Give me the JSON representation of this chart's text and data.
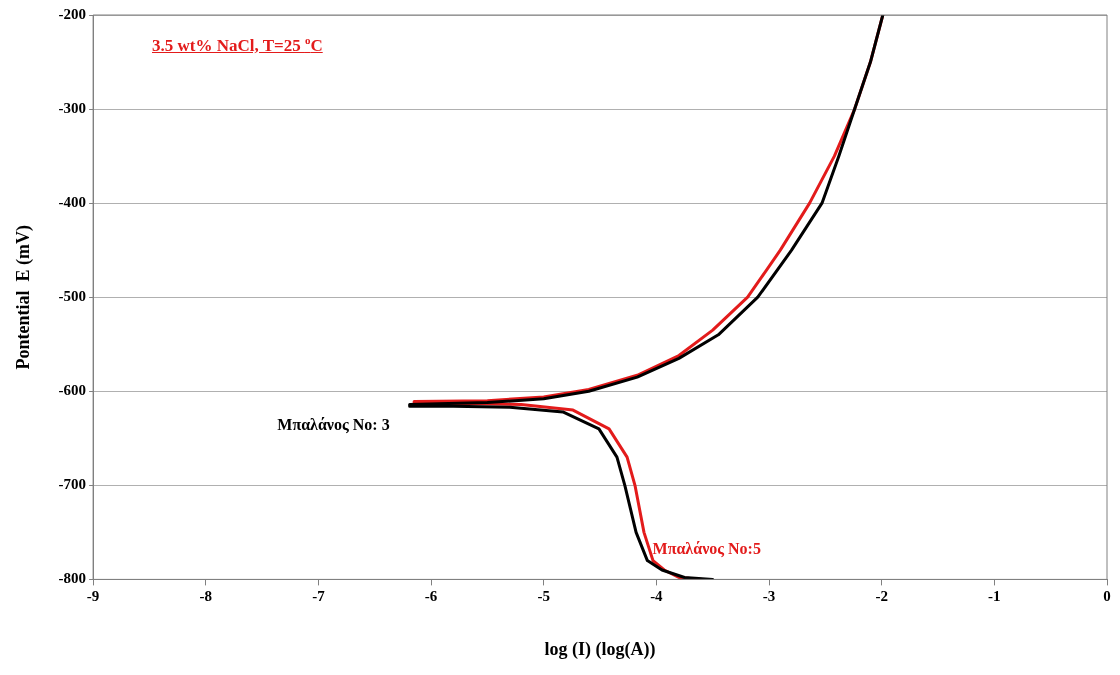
{
  "chart_data": {
    "type": "line",
    "xlabel": "log (I) (log(A))",
    "ylabel": "Pontential  E (mV)",
    "annotations": [
      "3.5 wt% NaCl, T=25 $^{o}$C"
    ],
    "xlim": [
      -9,
      0
    ],
    "xticks": [
      -9,
      -8,
      -7,
      -6,
      -5,
      -4,
      -3,
      -2,
      -1,
      0
    ],
    "ylim": [
      -800,
      -200
    ],
    "yticks": [
      -800,
      -700,
      -600,
      -500,
      -400,
      -300,
      -200
    ],
    "grid": "y",
    "legend": false,
    "marker": "none",
    "line_style": "solid",
    "series": [
      {
        "name": "Μπαλάνος No: 3",
        "color": "#000000",
        "x": [
          -3.5,
          -3.75,
          -3.95,
          -4.08,
          -4.18,
          -4.28,
          -4.35,
          -4.51,
          -4.83,
          -5.3,
          -5.8,
          -6.19,
          -6.19,
          -5.5,
          -5.0,
          -4.6,
          -4.17,
          -3.8,
          -3.45,
          -3.1,
          -2.8,
          -2.53,
          -2.38,
          -2.24,
          -2.1,
          -1.99
        ],
        "values": [
          -800,
          -798,
          -790,
          -780,
          -750,
          -700,
          -670,
          -640,
          -622,
          -617,
          -616,
          -616,
          -614,
          -612,
          -608,
          -600,
          -585,
          -565,
          -540,
          -500,
          -450,
          -400,
          -350,
          -300,
          -250,
          -200
        ]
      },
      {
        "name": "Μπαλάνος No:5",
        "color": "#e31b1b",
        "x": [
          -3.59,
          -3.8,
          -3.93,
          -4.03,
          -4.11,
          -4.19,
          -4.26,
          -4.42,
          -4.74,
          -5.2,
          -5.7,
          -6.15,
          -6.15,
          -5.5,
          -5.0,
          -4.6,
          -4.17,
          -3.8,
          -3.5,
          -3.19,
          -2.9,
          -2.64,
          -2.42,
          -2.24,
          -2.1,
          -1.99
        ],
        "values": [
          -800,
          -798,
          -790,
          -780,
          -750,
          -700,
          -670,
          -640,
          -620,
          -614,
          -613,
          -613,
          -611,
          -610,
          -606,
          -598,
          -583,
          -562,
          -535,
          -500,
          -450,
          -400,
          -350,
          -300,
          -250,
          -200
        ]
      }
    ]
  }
}
